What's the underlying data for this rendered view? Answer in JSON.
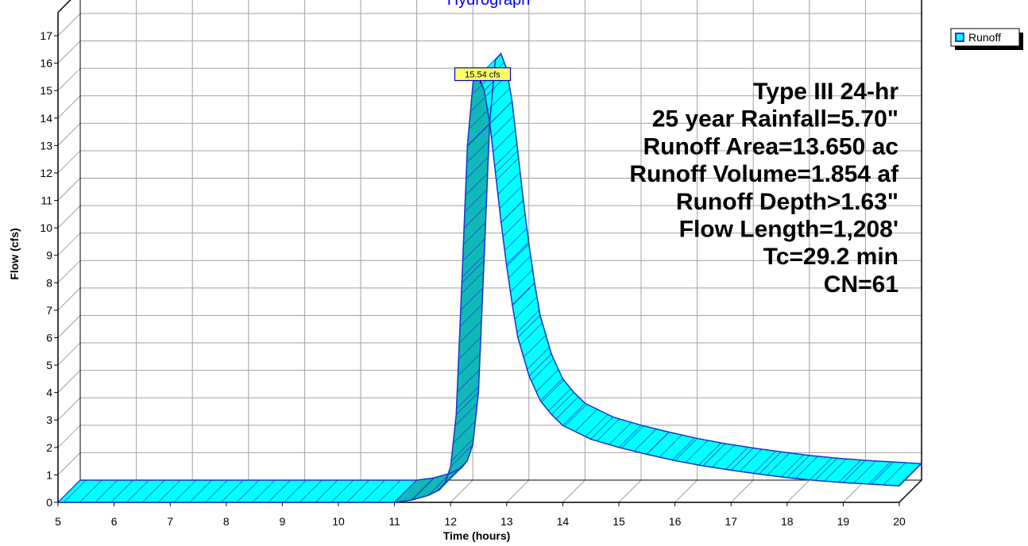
{
  "chart_data": {
    "type": "area",
    "title": "Hydrograph",
    "xlabel": "Time  (hours)",
    "ylabel": "Flow  (cfs)",
    "xlim": [
      5,
      20
    ],
    "ylim": [
      0,
      17
    ],
    "xticks": [
      "5",
      "6",
      "7",
      "8",
      "9",
      "10",
      "11",
      "12",
      "13",
      "14",
      "15",
      "16",
      "17",
      "18",
      "19",
      "20"
    ],
    "yticks": [
      "0",
      "1",
      "2",
      "3",
      "4",
      "5",
      "6",
      "7",
      "8",
      "9",
      "10",
      "11",
      "12",
      "13",
      "14",
      "15",
      "16",
      "17"
    ],
    "grid": true,
    "legend_position": "top-right",
    "series": [
      {
        "name": "Runoff",
        "color": "#00ffff",
        "x": [
          5.0,
          11.0,
          11.3,
          11.6,
          11.8,
          11.9,
          12.0,
          12.1,
          12.2,
          12.3,
          12.4,
          12.5,
          12.6,
          12.7,
          12.8,
          12.9,
          13.0,
          13.1,
          13.2,
          13.4,
          13.6,
          13.8,
          14.0,
          14.5,
          15.0,
          15.5,
          16.0,
          16.5,
          17.0,
          17.5,
          18.0,
          18.5,
          19.0,
          19.5,
          20.0
        ],
        "values": [
          0.0,
          0.0,
          0.08,
          0.25,
          0.45,
          0.7,
          1.3,
          3.2,
          8.0,
          13.0,
          15.3,
          15.54,
          15.0,
          13.8,
          12.0,
          10.2,
          8.6,
          7.2,
          6.0,
          4.6,
          3.7,
          3.2,
          2.8,
          2.3,
          2.0,
          1.75,
          1.52,
          1.33,
          1.17,
          1.03,
          0.9,
          0.8,
          0.72,
          0.66,
          0.6
        ]
      }
    ],
    "annotations": [
      {
        "label": "15.54 cfs",
        "x": 12.5,
        "y": 15.54
      }
    ],
    "info_lines": [
      "Type III 24-hr",
      "25 year Rainfall=5.70\"",
      "Runoff Area=13.650 ac",
      "Runoff Volume=1.854 af",
      "Runoff Depth>1.63\"",
      "Flow Length=1,208'",
      "Tc=29.2 min",
      "CN=61"
    ]
  }
}
